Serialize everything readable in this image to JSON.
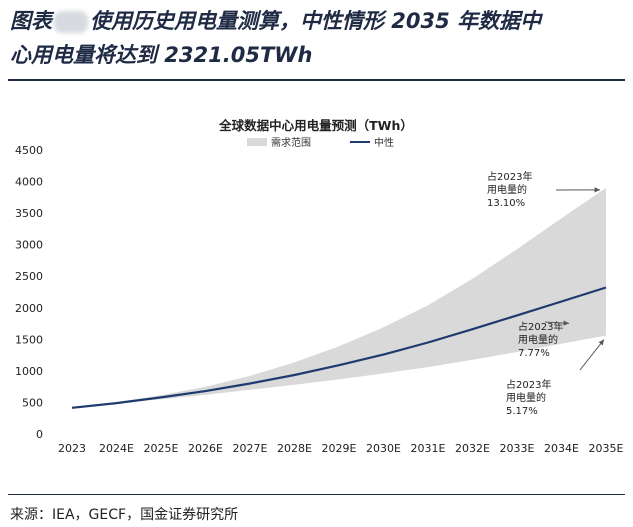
{
  "header": {
    "title_prefix": "图表",
    "title_line1": "使用历史用电量测算，中性情形 2035 年数据中",
    "title_line2": "心用电量将达到 2321.05TWh"
  },
  "footer": {
    "source": "来源：IEA，GECF，国金证券研究所"
  },
  "chart_data": {
    "type": "area",
    "title": "全球数据中心用电量预测（TWh）",
    "categories": [
      "2023",
      "2024E",
      "2025E",
      "2026E",
      "2027E",
      "2028E",
      "2029E",
      "2030E",
      "2031E",
      "2032E",
      "2033E",
      "2034E",
      "2035E"
    ],
    "ylim": [
      0,
      4500
    ],
    "yticks": [
      0,
      500,
      1000,
      1500,
      2000,
      2500,
      3000,
      3500,
      4000,
      4500
    ],
    "legend": {
      "position": "top",
      "range_label": "需求范围",
      "line_label": "中性"
    },
    "series": [
      {
        "name": "中性",
        "kind": "line",
        "color": "#1f3a6e",
        "values": [
          415,
          490,
          580,
          680,
          800,
          935,
          1090,
          1260,
          1450,
          1660,
          1880,
          2100,
          2321
        ]
      },
      {
        "name": "需求范围",
        "kind": "band",
        "color": "#d9d9d9",
        "upper": [
          415,
          505,
          615,
          750,
          920,
          1135,
          1390,
          1690,
          2040,
          2460,
          2930,
          3420,
          3900
        ],
        "lower": [
          415,
          480,
          550,
          620,
          700,
          780,
          865,
          960,
          1060,
          1175,
          1300,
          1430,
          1560
        ]
      }
    ],
    "annotations": [
      {
        "lines": [
          "占2023年",
          "用电量的",
          "13.10%"
        ],
        "target": "upper"
      },
      {
        "lines": [
          "占2023年",
          "用电量的",
          "7.77%"
        ],
        "target": "mid"
      },
      {
        "lines": [
          "占2023年",
          "用电量的",
          "5.17%"
        ],
        "target": "lower"
      }
    ],
    "grid": false
  }
}
